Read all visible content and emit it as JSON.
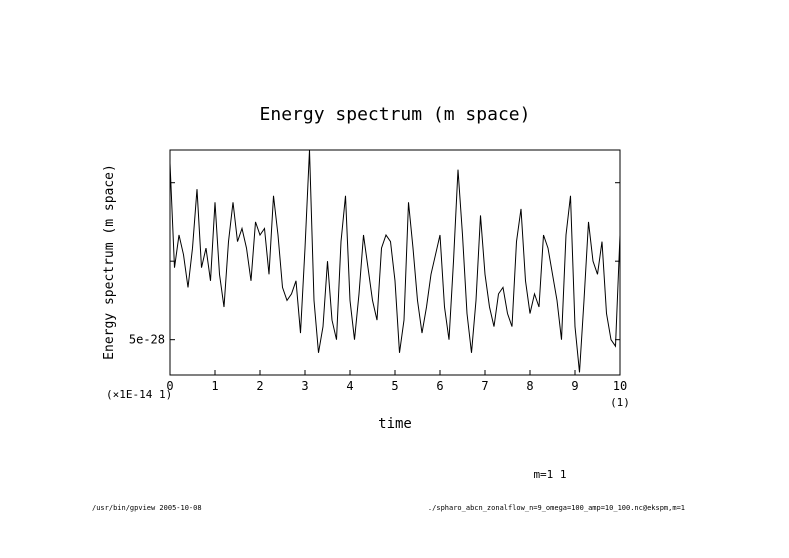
{
  "chart_data": {
    "type": "line",
    "title": "Energy spectrum (m space)",
    "xlabel": "time",
    "ylabel": "Energy spectrum (m space)",
    "x_scale_note": "(×1E-14 1)",
    "x_unit_note": "(1)",
    "xlim": [
      0,
      10
    ],
    "x_ticks": [
      "0",
      "1",
      "2",
      "3",
      "4",
      "5",
      "6",
      "7",
      "8",
      "9",
      "10"
    ],
    "y_tick_labels": [
      "5e-28"
    ],
    "y_tick_label_values": [
      5e-28
    ],
    "y_minor_tick_values": [
      5e-28,
      1.1e-27,
      1.7e-27
    ],
    "ylim": [
      2.3e-28,
      1.95e-27
    ],
    "series": [
      {
        "name": "m=1 1",
        "x": [
          0,
          0.1,
          0.2,
          0.3,
          0.4,
          0.5,
          0.6,
          0.7,
          0.8,
          0.9,
          1.0,
          1.1,
          1.2,
          1.3,
          1.4,
          1.5,
          1.6,
          1.7,
          1.8,
          1.9,
          2.0,
          2.1,
          2.2,
          2.3,
          2.4,
          2.5,
          2.6,
          2.7,
          2.8,
          2.9,
          3.0,
          3.1,
          3.2,
          3.3,
          3.4,
          3.5,
          3.6,
          3.7,
          3.8,
          3.9,
          4.0,
          4.1,
          4.2,
          4.3,
          4.4,
          4.5,
          4.6,
          4.7,
          4.8,
          4.9,
          5.0,
          5.1,
          5.2,
          5.3,
          5.4,
          5.5,
          5.6,
          5.7,
          5.8,
          5.9,
          6.0,
          6.1,
          6.2,
          6.3,
          6.4,
          6.5,
          6.6,
          6.7,
          6.8,
          6.9,
          7.0,
          7.1,
          7.2,
          7.3,
          7.4,
          7.5,
          7.6,
          7.7,
          7.8,
          7.9,
          8.0,
          8.1,
          8.2,
          8.3,
          8.4,
          8.5,
          8.6,
          8.7,
          8.8,
          8.9,
          9.0,
          9.1,
          9.2,
          9.3,
          9.4,
          9.5,
          9.6,
          9.7,
          9.8,
          9.9,
          10.0
        ],
        "values": [
          1.85e-27,
          1.05e-27,
          1.3e-27,
          1.15e-27,
          9e-28,
          1.2e-27,
          1.65e-27,
          1.05e-27,
          1.2e-27,
          9.5e-28,
          1.55e-27,
          1e-27,
          7.5e-28,
          1.25e-27,
          1.55e-27,
          1.25e-27,
          1.35e-27,
          1.2e-27,
          9.5e-28,
          1.4e-27,
          1.3e-27,
          1.35e-27,
          1e-27,
          1.6e-27,
          1.3e-27,
          9e-28,
          8e-28,
          8.5e-28,
          9.5e-28,
          5.5e-28,
          1.2e-27,
          1.95e-27,
          8e-28,
          4e-28,
          6e-28,
          1.1e-27,
          6.5e-28,
          5e-28,
          1.25e-27,
          1.6e-27,
          8e-28,
          5e-28,
          8.5e-28,
          1.3e-27,
          1.05e-27,
          8e-28,
          6.5e-28,
          1.2e-27,
          1.3e-27,
          1.25e-27,
          9.5e-28,
          4e-28,
          6.5e-28,
          1.55e-27,
          1.2e-27,
          8e-28,
          5.5e-28,
          7.5e-28,
          1e-27,
          1.15e-27,
          1.3e-27,
          7.5e-28,
          5e-28,
          1.1e-27,
          1.8e-27,
          1.3e-27,
          7e-28,
          4e-28,
          8e-28,
          1.45e-27,
          1e-27,
          7.5e-28,
          6e-28,
          8.5e-28,
          9e-28,
          7e-28,
          6e-28,
          1.25e-27,
          1.5e-27,
          9.5e-28,
          7e-28,
          8.5e-28,
          7.5e-28,
          1.3e-27,
          1.2e-27,
          1e-27,
          8e-28,
          5e-28,
          1.3e-27,
          1.6e-27,
          6e-28,
          2.5e-28,
          8e-28,
          1.4e-27,
          1.1e-27,
          1e-27,
          1.25e-27,
          7e-28,
          5e-28,
          4.5e-28,
          1.3e-27
        ]
      }
    ]
  },
  "legend_text": "m=1 1",
  "footer": {
    "left": "/usr/bin/gpview  2005-10-08",
    "right": "./spharo_abcn_zonalflow_n=9_omega=100_amp=10_100.nc@ekspm,m=1"
  }
}
